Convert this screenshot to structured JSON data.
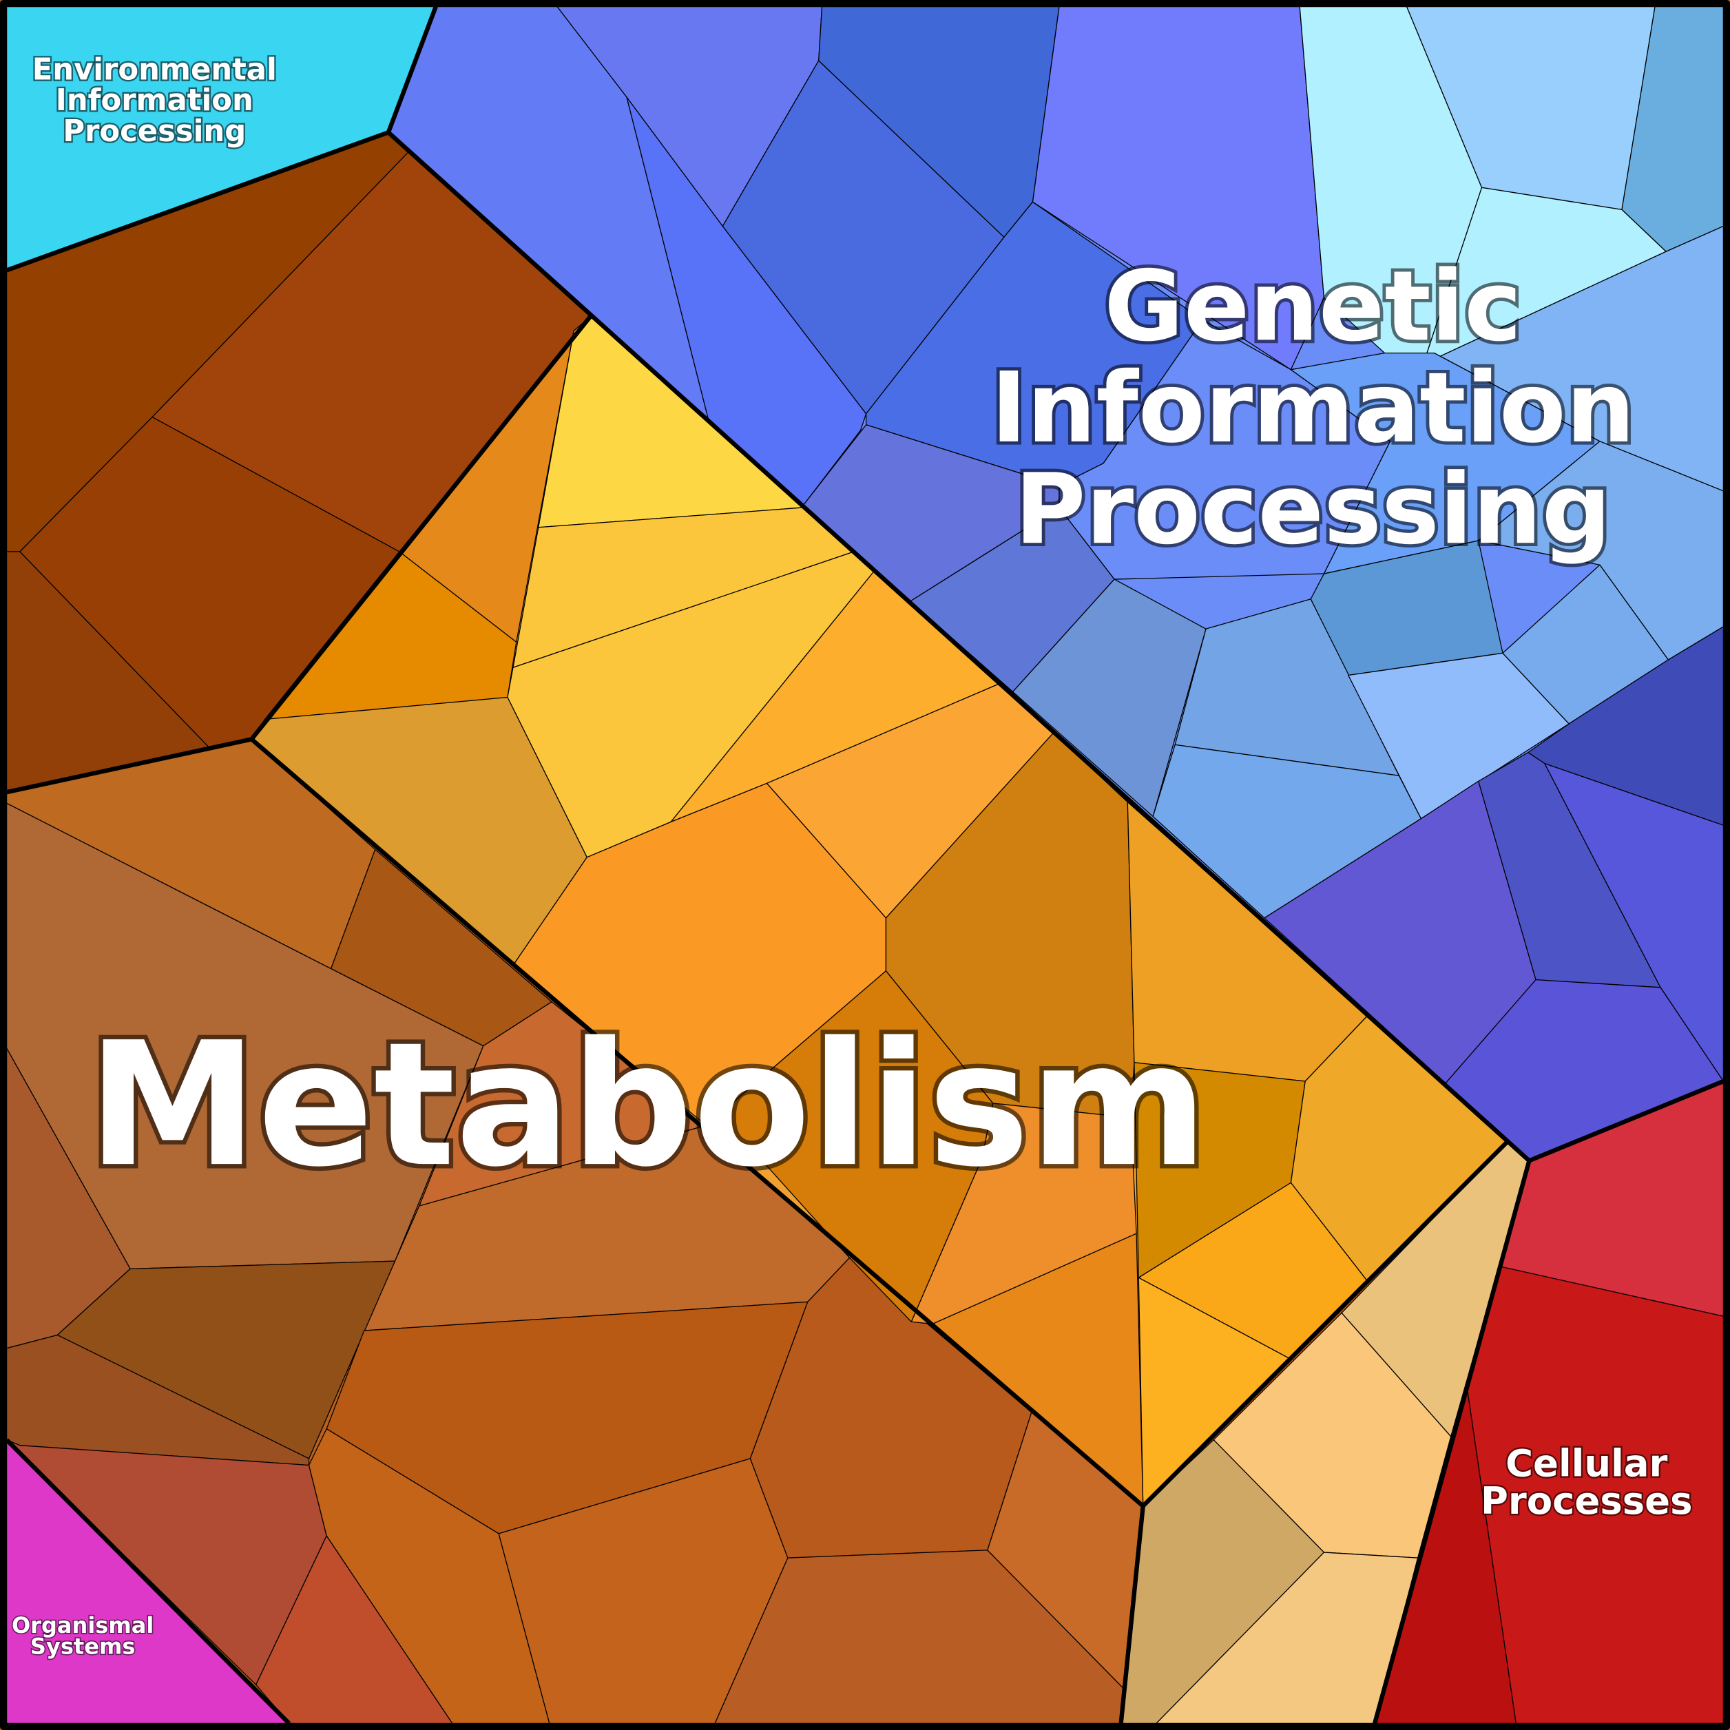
{
  "labels": [
    {
      "lines": [
        "Environmental",
        "Information",
        "Processing"
      ]
    },
    {
      "lines": [
        "Genetic",
        "Information",
        "Processing"
      ]
    },
    {
      "lines": [
        "Metabolism"
      ]
    },
    {
      "lines": [
        "Cellular",
        "Processes"
      ]
    },
    {
      "lines": [
        "Organismal",
        "Systems"
      ]
    }
  ]
}
